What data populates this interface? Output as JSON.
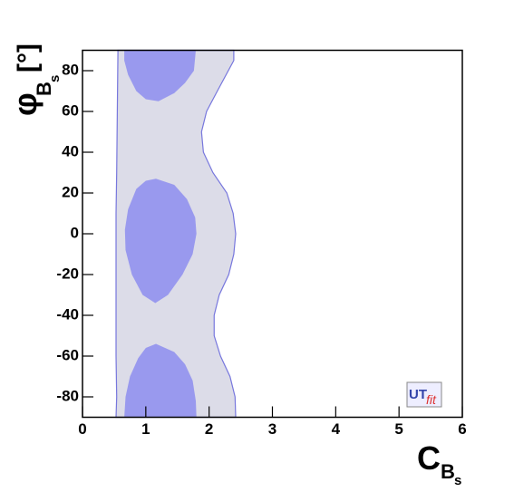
{
  "chart_data": {
    "type": "contour",
    "x_label": {
      "symbol": "C",
      "subscript": "B",
      "sub_subscript": "s"
    },
    "y_label": {
      "symbol": "φ",
      "subscript": "B",
      "sub_subscript": "s",
      "unit": "[°]"
    },
    "annotations": {
      "logo_main": "UT",
      "logo_sub": "fit"
    },
    "xlim": [
      0,
      6
    ],
    "xticks": [
      0,
      1,
      2,
      3,
      4,
      5,
      6
    ],
    "ylim": [
      -90,
      90
    ],
    "yticks": [
      -80,
      -60,
      -40,
      -20,
      0,
      20,
      40,
      60,
      80
    ],
    "series": [
      {
        "color": "#dcdce8",
        "edge_color": "#7777dd",
        "x": [
          0.56,
          0.55,
          0.54,
          0.53,
          0.53,
          0.53,
          0.53,
          0.54,
          0.53,
          2.42,
          2.41,
          2.33,
          2.18,
          2.08,
          2.08,
          2.16,
          2.31,
          2.39,
          2.42,
          2.38,
          2.28,
          2.06,
          1.91,
          1.88,
          1.96,
          2.13,
          2.39,
          2.39
        ],
        "y": [
          90,
          60,
          30,
          10,
          0,
          -30,
          -60,
          -80,
          -90,
          -90,
          -80,
          -70,
          -60,
          -50,
          -40,
          -30,
          -20,
          -10,
          0,
          10,
          20,
          30,
          40,
          50,
          60,
          70,
          85,
          90
        ]
      },
      {
        "color": "#9999ee",
        "x": [
          0.66,
          1.79,
          1.76,
          1.62,
          1.45,
          1.2,
          1.0,
          0.85,
          0.72,
          0.66
        ],
        "y": [
          90,
          90,
          80,
          74,
          69,
          65,
          66,
          70,
          78,
          85
        ]
      },
      {
        "color": "#9999ee",
        "x": [
          1.16,
          1.45,
          1.65,
          1.78,
          1.8,
          1.74,
          1.58,
          1.35,
          1.15,
          0.95,
          0.78,
          0.68,
          0.67,
          0.72,
          0.85,
          1.0
        ],
        "y": [
          27,
          24,
          17,
          8,
          0,
          -10,
          -20,
          -30,
          -34,
          -30,
          -20,
          -8,
          2,
          12,
          22,
          26
        ]
      },
      {
        "color": "#9999ee",
        "x": [
          1.16,
          1.45,
          1.62,
          1.74,
          1.79,
          1.8,
          0.66,
          0.68,
          0.75,
          0.88,
          1.0
        ],
        "y": [
          -54,
          -58,
          -64,
          -72,
          -82,
          -90,
          -90,
          -80,
          -70,
          -61,
          -56
        ]
      }
    ]
  }
}
